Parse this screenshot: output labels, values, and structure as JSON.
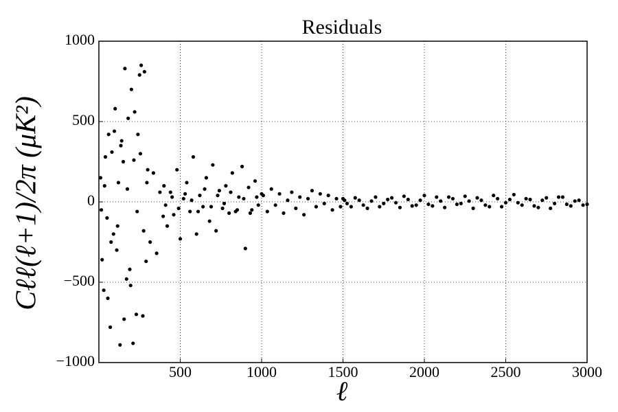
{
  "chart_data": {
    "type": "scatter",
    "title": "Residuals",
    "x_label": "ℓ",
    "y_label": "Cℓℓ(ℓ+1)/2π (μK²)",
    "color": "#000000",
    "grid": true,
    "xlim": [
      0,
      3000
    ],
    "xticks": [
      500,
      1000,
      1500,
      2000,
      2500,
      3000
    ],
    "ylim": [
      -1000,
      1000
    ],
    "yticks": [
      {
        "value": -1000,
        "label": "−1000"
      },
      {
        "value": -500,
        "label": "−500"
      },
      0,
      500,
      1000
    ],
    "x": [
      10,
      20,
      30,
      40,
      50,
      60,
      70,
      80,
      90,
      100,
      110,
      120,
      130,
      140,
      150,
      160,
      170,
      180,
      190,
      200,
      210,
      220,
      230,
      240,
      250,
      260,
      270,
      280,
      290,
      300,
      15,
      35,
      55,
      75,
      95,
      115,
      135,
      155,
      175,
      195,
      215,
      235,
      255,
      275,
      295,
      315,
      335,
      355,
      375,
      395,
      400,
      420,
      440,
      460,
      480,
      500,
      520,
      540,
      560,
      580,
      600,
      620,
      640,
      660,
      680,
      700,
      720,
      740,
      760,
      780,
      800,
      820,
      840,
      860,
      880,
      900,
      920,
      940,
      960,
      980,
      1000,
      410,
      450,
      490,
      530,
      570,
      610,
      650,
      690,
      730,
      770,
      810,
      850,
      890,
      930,
      970,
      1010,
      1035,
      1060,
      1085,
      1110,
      1135,
      1160,
      1185,
      1210,
      1235,
      1260,
      1285,
      1310,
      1335,
      1360,
      1385,
      1410,
      1435,
      1460,
      1485,
      1510,
      1500,
      1550,
      1600,
      1650,
      1700,
      1750,
      1800,
      1850,
      1900,
      1950,
      2000,
      2050,
      2100,
      2150,
      2200,
      2250,
      2300,
      2350,
      2400,
      2450,
      2500,
      2550,
      2600,
      2650,
      2700,
      2750,
      2800,
      2850,
      2900,
      2950,
      3000,
      1525,
      1575,
      1625,
      1675,
      1725,
      1775,
      1825,
      1875,
      1925,
      1975,
      2025,
      2075,
      2125,
      2175,
      2225,
      2275,
      2325,
      2375,
      2425,
      2475,
      2525,
      2575,
      2625,
      2675,
      2725,
      2775,
      2825,
      2875,
      2925,
      2975
    ],
    "values": [
      150,
      -360,
      -550,
      280,
      -100,
      420,
      -780,
      310,
      -200,
      580,
      -300,
      120,
      -890,
      380,
      250,
      830,
      -480,
      520,
      -420,
      700,
      -880,
      560,
      -700,
      420,
      790,
      850,
      -710,
      810,
      -370,
      200,
      -50,
      100,
      -600,
      -250,
      440,
      -150,
      350,
      -730,
      80,
      -520,
      260,
      -60,
      300,
      -180,
      120,
      -250,
      180,
      -320,
      60,
      -90,
      100,
      -150,
      60,
      -80,
      200,
      -230,
      20,
      120,
      -60,
      280,
      -200,
      40,
      -30,
      150,
      -120,
      230,
      -180,
      70,
      -40,
      100,
      -70,
      180,
      -60,
      30,
      220,
      -290,
      90,
      -50,
      130,
      -20,
      50,
      -20,
      30,
      -40,
      50,
      10,
      -60,
      80,
      -30,
      40,
      -10,
      60,
      -50,
      20,
      -70,
      30,
      40,
      -60,
      80,
      -20,
      50,
      -70,
      10,
      60,
      -40,
      30,
      -80,
      20,
      70,
      -30,
      50,
      -10,
      40,
      -50,
      20,
      -30,
      10,
      20,
      -30,
      10,
      -40,
      30,
      -10,
      25,
      -35,
      15,
      -20,
      40,
      -25,
      5,
      30,
      -15,
      35,
      -40,
      10,
      -30,
      20,
      -5,
      45,
      -20,
      15,
      -35,
      25,
      -10,
      30,
      -25,
      10,
      -15,
      -10,
      25,
      -20,
      5,
      -30,
      15,
      -5,
      35,
      -25,
      10,
      -15,
      30,
      -35,
      20,
      -10,
      5,
      25,
      -20,
      40,
      -30,
      15,
      -5,
      20,
      -25,
      10,
      -40,
      30,
      -15,
      5,
      -20
    ]
  }
}
